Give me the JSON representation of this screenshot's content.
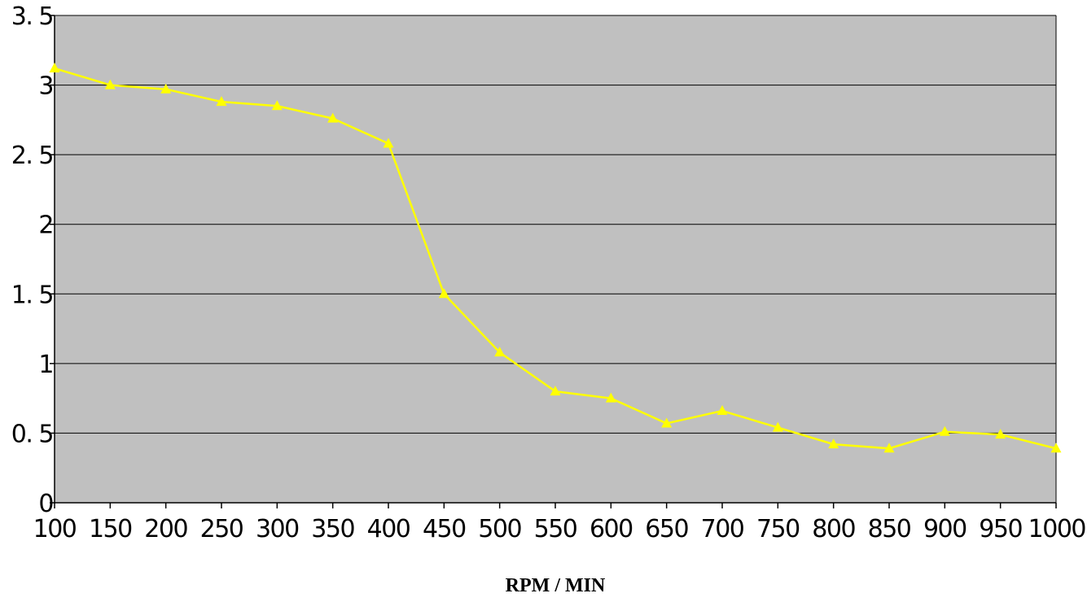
{
  "chart_data": {
    "type": "line",
    "title": "",
    "xlabel": "RPM / MIN",
    "ylabel": "",
    "x": [
      100,
      150,
      200,
      250,
      300,
      350,
      400,
      450,
      500,
      550,
      600,
      650,
      700,
      750,
      800,
      850,
      900,
      950,
      1000
    ],
    "categories": [
      "100",
      "150",
      "200",
      "250",
      "300",
      "350",
      "400",
      "450",
      "500",
      "550",
      "600",
      "650",
      "700",
      "750",
      "800",
      "850",
      "900",
      "950",
      "1000"
    ],
    "series": [
      {
        "values": [
          3.12,
          3.0,
          2.97,
          2.88,
          2.85,
          2.76,
          2.58,
          1.5,
          1.08,
          0.8,
          0.75,
          0.57,
          0.66,
          0.54,
          0.42,
          0.39,
          0.51,
          0.49,
          0.39
        ],
        "color": "#ffff00",
        "marker": "triangle"
      }
    ],
    "ylim": [
      0,
      3.5
    ],
    "yticks": [
      "0",
      "0. 5",
      "1",
      "1. 5",
      "2",
      "2. 5",
      "3",
      "3. 5"
    ],
    "ytick_values": [
      0,
      0.5,
      1,
      1.5,
      2,
      2.5,
      3,
      3.5
    ],
    "grid": true,
    "legend": "none",
    "colors": {
      "plot_background": "#c0c0c0",
      "gridline": "#000000",
      "line": "#ffff00"
    }
  }
}
